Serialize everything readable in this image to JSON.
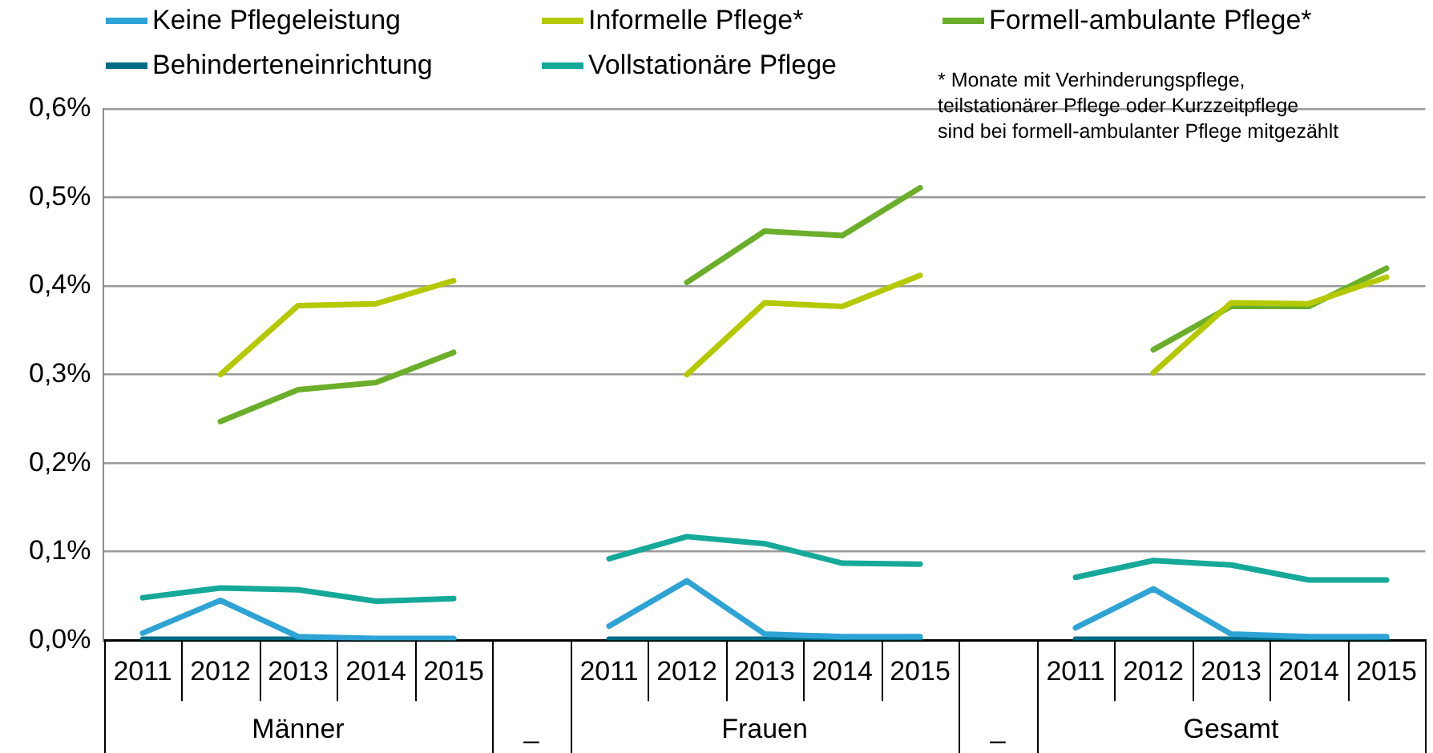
{
  "chart_data": {
    "type": "line",
    "categories": [
      "2011",
      "2012",
      "2013",
      "2014",
      "2015",
      null,
      "2011",
      "2012",
      "2013",
      "2014",
      "2015",
      null,
      "2011",
      "2012",
      "2013",
      "2014",
      "2015"
    ],
    "series": [
      {
        "name": "Keine Pflegeleistung",
        "color": "#2ea3d5",
        "values": [
          0.008,
          0.045,
          0.004,
          0.002,
          0.002,
          null,
          0.016,
          0.067,
          0.007,
          0.004,
          0.004,
          null,
          0.014,
          0.058,
          0.007,
          0.004,
          0.004
        ]
      },
      {
        "name": "Informelle Pflege*",
        "color": "#b5c900",
        "values": [
          null,
          0.3,
          0.378,
          0.38,
          0.406,
          null,
          null,
          0.3,
          0.381,
          0.377,
          0.412,
          null,
          null,
          0.302,
          0.381,
          0.38,
          0.41
        ]
      },
      {
        "name": "Formell-ambulante Pflege*",
        "color": "#6aae2a",
        "values": [
          null,
          0.247,
          0.283,
          0.291,
          0.325,
          null,
          null,
          0.404,
          0.462,
          0.457,
          0.511,
          null,
          null,
          0.328,
          0.377,
          0.377,
          0.42
        ]
      },
      {
        "name": "Behinderteneinrichtung",
        "color": "#006b85",
        "values": [
          0.001,
          0.001,
          0.001,
          0.001,
          0.001,
          null,
          0.001,
          0.001,
          0.001,
          0.001,
          0.001,
          null,
          0.001,
          0.001,
          0.001,
          0.001,
          0.001
        ]
      },
      {
        "name": "Vollstationäre Pflege",
        "color": "#16a99a",
        "values": [
          0.048,
          0.059,
          0.057,
          0.044,
          0.047,
          null,
          0.092,
          0.117,
          0.109,
          0.087,
          0.086,
          null,
          0.071,
          0.09,
          0.085,
          0.068,
          0.068
        ]
      }
    ],
    "ylim": [
      0,
      0.6
    ],
    "yticks": [
      {
        "value": 0,
        "label": "0,0%"
      },
      {
        "value": 0.1,
        "label": "0,1%"
      },
      {
        "value": 0.2,
        "label": "0,2%"
      },
      {
        "value": 0.3,
        "label": "0,3%"
      },
      {
        "value": 0.4,
        "label": "0,4%"
      },
      {
        "value": 0.5,
        "label": "0,5%"
      },
      {
        "value": 0.6,
        "label": "0,6%"
      }
    ],
    "grid": "y",
    "legend": "top",
    "marker": "none",
    "line_style": "solid",
    "annotations": [
      "Männer",
      "_",
      "Frauen",
      "_",
      "Gesamt",
      "* Monate mit Verhinderungspflege,\nteilstationärer Pflege oder Kurzzeitpflege\nsind bei formell-ambulanter Pflege mitgezählt"
    ]
  }
}
